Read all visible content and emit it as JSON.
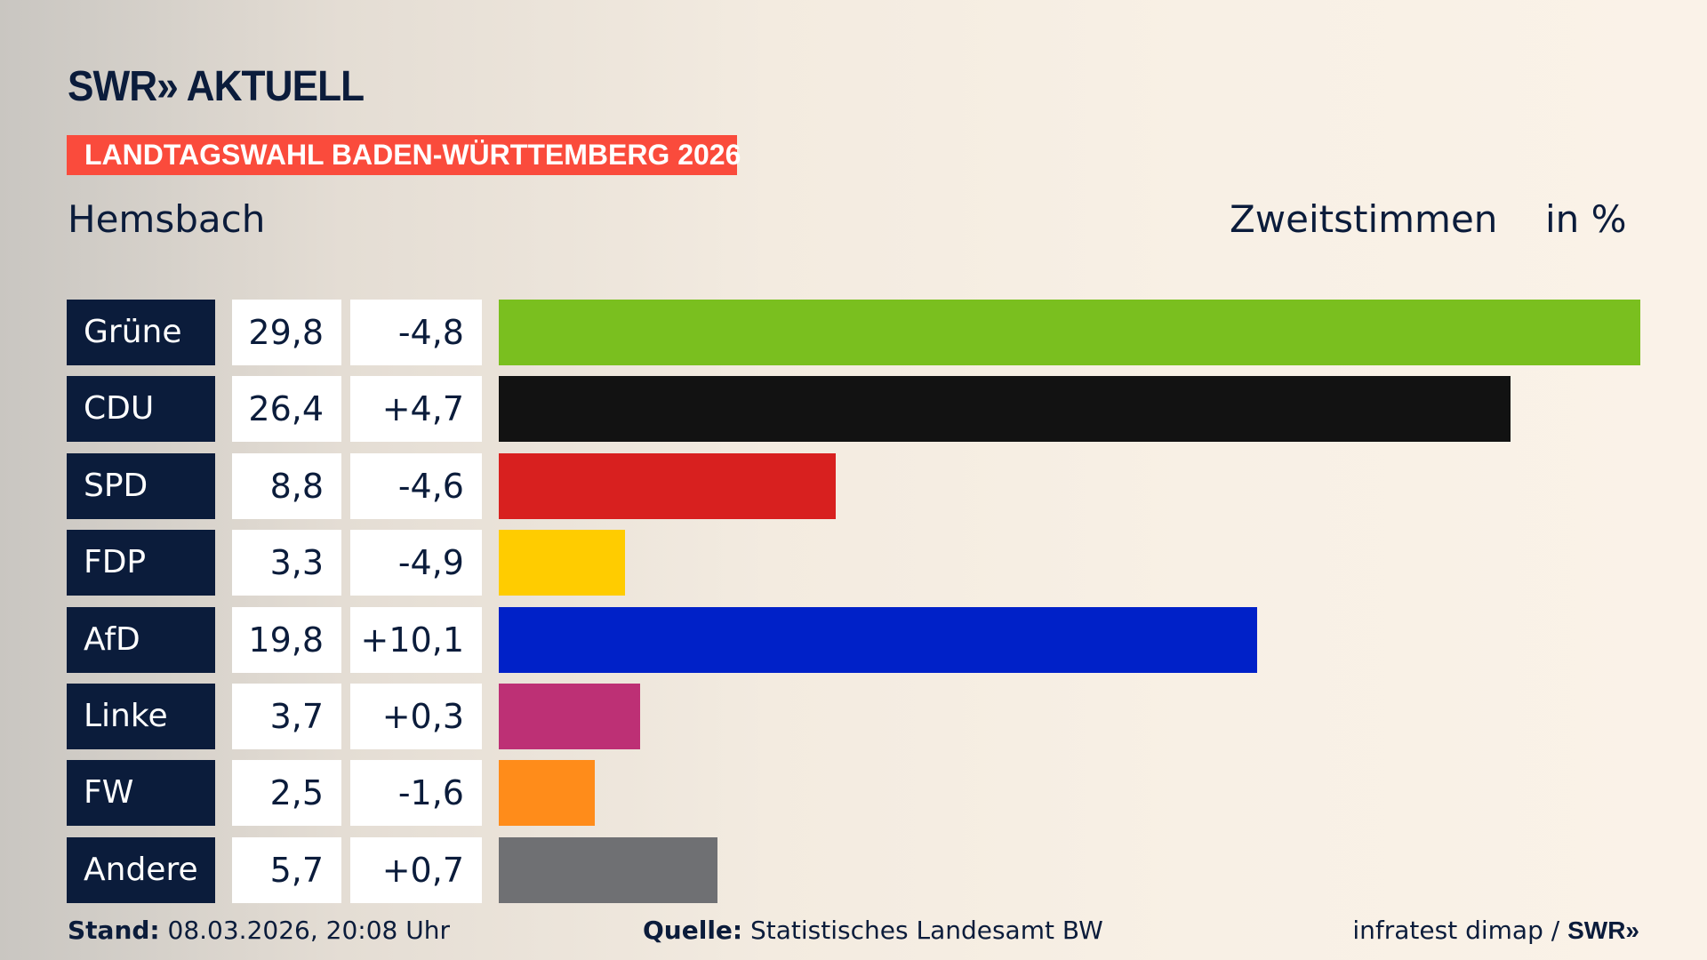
{
  "logo": "SWR» AKTUELL",
  "banner": "LANDTAGSWAHL BADEN-WÜRTTEMBERG 2026",
  "region": "Hemsbach",
  "metric": "Zweitstimmen",
  "unit": "in %",
  "chart_data": {
    "type": "bar",
    "orientation": "horizontal",
    "categories": [
      "Grüne",
      "CDU",
      "SPD",
      "FDP",
      "AfD",
      "Linke",
      "FW",
      "Andere"
    ],
    "values": [
      29.8,
      26.4,
      8.8,
      3.3,
      19.8,
      3.7,
      2.5,
      5.7
    ],
    "value_labels": [
      "29,8",
      "26,4",
      "8,8",
      "3,3",
      "19,8",
      "3,7",
      "2,5",
      "5,7"
    ],
    "diff_labels": [
      "-4,8",
      "+4,7",
      "-4,6",
      "-4,9",
      "+10,1",
      "+0,3",
      "-1,6",
      "+0,7"
    ],
    "diffs": [
      -4.8,
      4.7,
      -4.6,
      -4.9,
      10.1,
      0.3,
      -1.6,
      0.7
    ],
    "colors": [
      "#7abf1f",
      "#121212",
      "#d8201f",
      "#ffcc00",
      "#0021c8",
      "#bd3075",
      "#ff8c1a",
      "#6f7073"
    ]
  },
  "footer": {
    "stand_label": "Stand:",
    "stand_value": " 08.03.2026, 20:08 Uhr",
    "source_label": "Quelle:",
    "source_value": " Statistisches Landesamt BW",
    "credit": "infratest dimap / ",
    "credit_logo": "SWR»"
  }
}
